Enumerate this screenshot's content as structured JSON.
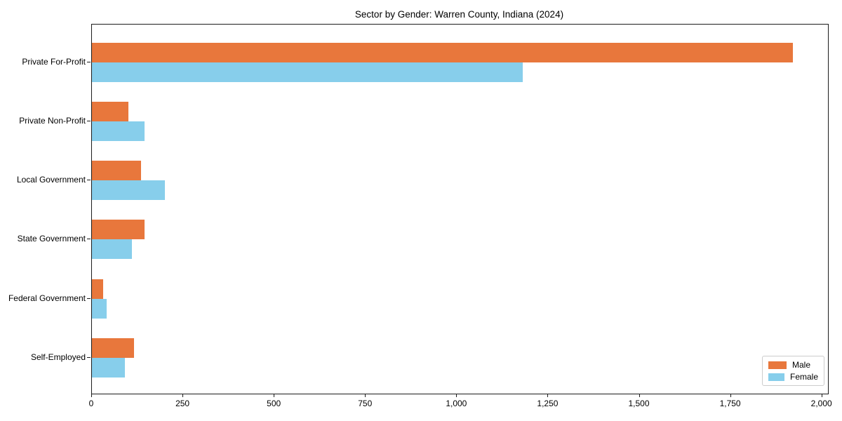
{
  "title": "Sector by Gender: Warren County, Indiana (2024)",
  "chart_data": {
    "type": "bar",
    "orientation": "horizontal",
    "title": "Sector by Gender: Warren County, Indiana (2024)",
    "categories": [
      "Private For-Profit",
      "Private Non-Profit",
      "Local Government",
      "State Government",
      "Federal Government",
      "Self-Employed"
    ],
    "series": [
      {
        "name": "Male",
        "color": "#e8773c",
        "values": [
          1920,
          100,
          135,
          145,
          30,
          115
        ]
      },
      {
        "name": "Female",
        "color": "#87ceeb",
        "values": [
          1180,
          145,
          200,
          110,
          40,
          90
        ]
      }
    ],
    "xlabel": "",
    "ylabel": "",
    "xlim": [
      0,
      2016
    ],
    "xticks": [
      0,
      250,
      500,
      750,
      1000,
      1250,
      1500,
      1750,
      2000
    ],
    "xticklabels": [
      "0",
      "250",
      "500",
      "750",
      "1,000",
      "1,250",
      "1,500",
      "1,750",
      "2,000"
    ],
    "grid": false,
    "legend": {
      "position": "lower right",
      "items": [
        "Male",
        "Female"
      ]
    },
    "background": "#ffffff",
    "axis_border_color": "#1c1c1c"
  }
}
